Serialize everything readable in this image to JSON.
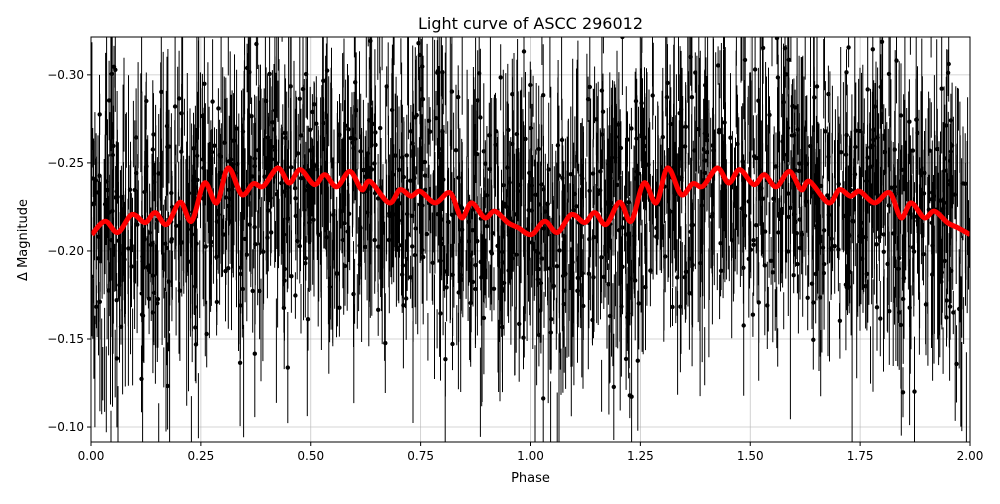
{
  "chart_data": {
    "type": "scatter",
    "title": "Light curve of ASCC 296012",
    "xlabel": "Phase",
    "ylabel": "Δ Magnitude",
    "xlim": [
      0,
      2
    ],
    "ylim": [
      -0.0915,
      -0.3215
    ],
    "y_inverted": true,
    "grid": true,
    "xticks": [
      "0.00",
      "0.25",
      "0.50",
      "0.75",
      "1.00",
      "1.25",
      "1.50",
      "1.75",
      "2.00"
    ],
    "yticks": [
      "−0.30",
      "−0.25",
      "−0.20",
      "−0.15",
      "−0.10"
    ],
    "ytick_values": [
      -0.3,
      -0.25,
      -0.2,
      -0.15,
      -0.1
    ],
    "xtick_values": [
      0,
      0.25,
      0.5,
      0.75,
      1,
      1.25,
      1.5,
      1.75,
      2
    ],
    "colors": {
      "observations": "#000000",
      "model": "#ff0000",
      "grid": "#b0b0b0"
    },
    "observations": {
      "style": "black points with vertical error bars",
      "typical_magnitude_range": [
        -0.32,
        -0.09
      ],
      "typical_error": 0.02
    },
    "model": {
      "style": "thick red line",
      "phase": [
        0.002,
        0.032,
        0.061,
        0.093,
        0.123,
        0.146,
        0.172,
        0.203,
        0.229,
        0.258,
        0.286,
        0.312,
        0.343,
        0.369,
        0.392,
        0.425,
        0.451,
        0.476,
        0.508,
        0.532,
        0.559,
        0.589,
        0.616,
        0.635,
        0.678,
        0.703,
        0.728,
        0.749,
        0.783,
        0.817,
        0.843,
        0.866,
        0.896,
        0.919,
        0.949,
        0.972,
        1.002,
        1.032,
        1.061,
        1.093,
        1.123,
        1.146,
        1.172,
        1.203,
        1.229,
        1.258,
        1.286,
        1.312,
        1.343,
        1.369,
        1.392,
        1.425,
        1.451,
        1.476,
        1.508,
        1.532,
        1.559,
        1.589,
        1.616,
        1.635,
        1.678,
        1.703,
        1.728,
        1.749,
        1.783,
        1.817,
        1.843,
        1.866,
        1.896,
        1.919,
        1.949,
        1.972,
        2.0
      ],
      "magnitude": [
        -0.2093,
        -0.2169,
        -0.2105,
        -0.2207,
        -0.2161,
        -0.2218,
        -0.215,
        -0.2277,
        -0.2169,
        -0.2386,
        -0.2273,
        -0.2471,
        -0.232,
        -0.2382,
        -0.2367,
        -0.2471,
        -0.2386,
        -0.2462,
        -0.2377,
        -0.2433,
        -0.2364,
        -0.2452,
        -0.2348,
        -0.2395,
        -0.2273,
        -0.2348,
        -0.2311,
        -0.2339,
        -0.2273,
        -0.233,
        -0.2188,
        -0.2273,
        -0.2188,
        -0.2226,
        -0.216,
        -0.2132,
        -0.2093,
        -0.2169,
        -0.2105,
        -0.2207,
        -0.2161,
        -0.2218,
        -0.215,
        -0.2277,
        -0.2169,
        -0.2386,
        -0.2273,
        -0.2471,
        -0.232,
        -0.2382,
        -0.2367,
        -0.2471,
        -0.2386,
        -0.2462,
        -0.2377,
        -0.2433,
        -0.2364,
        -0.2452,
        -0.2348,
        -0.2395,
        -0.2273,
        -0.2348,
        -0.2311,
        -0.2339,
        -0.2273,
        -0.233,
        -0.2188,
        -0.2273,
        -0.2188,
        -0.2226,
        -0.216,
        -0.2132,
        -0.2093
      ]
    }
  }
}
